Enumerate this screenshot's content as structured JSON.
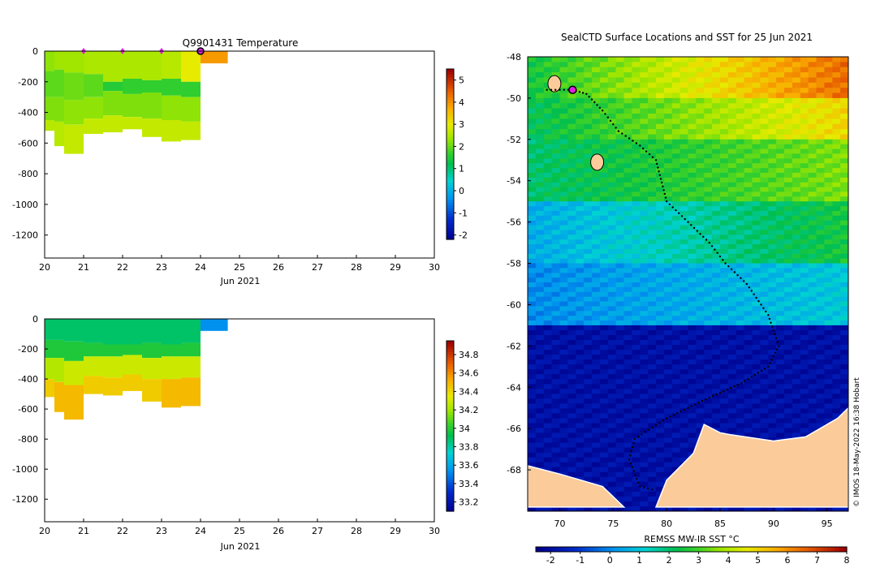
{
  "charts": {
    "temperature": {
      "title": "Q9901431  Temperature",
      "xlabel": "Jun 2021",
      "x_ticks": [
        "20",
        "21",
        "22",
        "23",
        "24",
        "25",
        "26",
        "27",
        "28",
        "29",
        "30"
      ],
      "y_ticks": [
        "0",
        "-200",
        "-400",
        "-600",
        "-800",
        "-1000",
        "-1200"
      ],
      "colorbar_ticks": [
        "5",
        "4",
        "3",
        "2",
        "1",
        "0",
        "-1",
        "-2"
      ]
    },
    "salinity": {
      "xlabel": "Jun 2021",
      "x_ticks": [
        "20",
        "21",
        "22",
        "23",
        "24",
        "25",
        "26",
        "27",
        "28",
        "29",
        "30"
      ],
      "y_ticks": [
        "0",
        "-200",
        "-400",
        "-600",
        "-800",
        "-1000",
        "-1200"
      ],
      "colorbar_ticks": [
        "34.8",
        "34.6",
        "34.4",
        "34.2",
        "34",
        "33.8",
        "33.6",
        "33.4",
        "33.2"
      ]
    },
    "map": {
      "title": "SealCTD Surface Locations and SST for 25 Jun 2021",
      "x_ticks": [
        "70",
        "75",
        "80",
        "85",
        "90",
        "95"
      ],
      "y_ticks": [
        "-48",
        "-50",
        "-52",
        "-54",
        "-56",
        "-58",
        "-60",
        "-62",
        "-64",
        "-66",
        "-68"
      ],
      "colorbar_label": "REMSS MW-IR SST °C",
      "colorbar_ticks": [
        "-2",
        "-1",
        "0",
        "1",
        "2",
        "3",
        "4",
        "5",
        "6",
        "7",
        "8"
      ],
      "credit": "© IMOS 18-May-2022 16:38 Hobart"
    }
  },
  "chart_data": [
    {
      "type": "heatmap",
      "title": "Q9901431  Temperature",
      "xlabel": "Jun 2021",
      "ylabel": "",
      "xlim": [
        20,
        30
      ],
      "ylim": [
        -1350,
        0
      ],
      "color_range": [
        -2,
        5.5
      ],
      "profiles": [
        {
          "day": 20.0,
          "max_depth": 520,
          "layers": [
            [
              0,
              130,
              2.4
            ],
            [
              130,
              300,
              2.1
            ],
            [
              300,
              450,
              2.3
            ],
            [
              450,
              520,
              2.7
            ]
          ]
        },
        {
          "day": 20.25,
          "max_depth": 620,
          "layers": [
            [
              0,
              120,
              2.5
            ],
            [
              120,
              300,
              2.1
            ],
            [
              300,
              460,
              2.3
            ],
            [
              460,
              620,
              2.7
            ]
          ]
        },
        {
          "day": 20.5,
          "max_depth": 670,
          "layers": [
            [
              0,
              140,
              2.5
            ],
            [
              140,
              320,
              2.2
            ],
            [
              320,
              480,
              2.4
            ],
            [
              480,
              670,
              2.8
            ]
          ]
        },
        {
          "day": 21.0,
          "max_depth": 540,
          "layers": [
            [
              0,
              150,
              2.6
            ],
            [
              150,
              300,
              2.1
            ],
            [
              300,
              440,
              2.4
            ],
            [
              440,
              540,
              2.8
            ]
          ]
        },
        {
          "day": 21.5,
          "max_depth": 530,
          "layers": [
            [
              0,
              200,
              2.6
            ],
            [
              200,
              260,
              1.7
            ],
            [
              260,
              420,
              2.3
            ],
            [
              420,
              530,
              2.8
            ]
          ]
        },
        {
          "day": 22.0,
          "max_depth": 510,
          "layers": [
            [
              0,
              180,
              2.6
            ],
            [
              180,
              280,
              1.8
            ],
            [
              280,
              430,
              2.3
            ],
            [
              430,
              510,
              2.8
            ]
          ]
        },
        {
          "day": 22.5,
          "max_depth": 560,
          "layers": [
            [
              0,
              190,
              2.6
            ],
            [
              190,
              270,
              1.8
            ],
            [
              270,
              440,
              2.3
            ],
            [
              440,
              560,
              2.8
            ]
          ]
        },
        {
          "day": 23.0,
          "max_depth": 590,
          "layers": [
            [
              0,
              180,
              2.7
            ],
            [
              180,
              290,
              1.8
            ],
            [
              290,
              450,
              2.4
            ],
            [
              450,
              590,
              2.8
            ]
          ]
        },
        {
          "day": 23.5,
          "max_depth": 580,
          "layers": [
            [
              0,
              200,
              3.1
            ],
            [
              200,
              300,
              1.8
            ],
            [
              300,
              460,
              2.4
            ],
            [
              460,
              580,
              2.8
            ]
          ]
        },
        {
          "day": 24.0,
          "max_depth": 80,
          "layers": [
            [
              0,
              80,
              4.0
            ]
          ]
        }
      ],
      "surface_markers_days": [
        21,
        22,
        23
      ],
      "current_day": 24
    },
    {
      "type": "heatmap",
      "title": "",
      "xlabel": "Jun 2021",
      "ylabel": "",
      "xlim": [
        20,
        30
      ],
      "ylim": [
        -1350,
        0
      ],
      "color_range": [
        33.1,
        34.95
      ],
      "profiles": [
        {
          "day": 20.0,
          "max_depth": 520,
          "layers": [
            [
              0,
              140,
              33.9
            ],
            [
              140,
              260,
              34.0
            ],
            [
              260,
              400,
              34.25
            ],
            [
              400,
              520,
              34.45
            ]
          ]
        },
        {
          "day": 20.25,
          "max_depth": 620,
          "layers": [
            [
              0,
              140,
              33.9
            ],
            [
              140,
              260,
              34.0
            ],
            [
              260,
              420,
              34.25
            ],
            [
              420,
              620,
              34.5
            ]
          ]
        },
        {
          "day": 20.5,
          "max_depth": 670,
          "layers": [
            [
              0,
              150,
              33.9
            ],
            [
              150,
              280,
              34.0
            ],
            [
              280,
              440,
              34.3
            ],
            [
              440,
              670,
              34.5
            ]
          ]
        },
        {
          "day": 21.0,
          "max_depth": 500,
          "layers": [
            [
              0,
              160,
              33.9
            ],
            [
              160,
              250,
              34.0
            ],
            [
              250,
              380,
              34.3
            ],
            [
              380,
              500,
              34.45
            ]
          ]
        },
        {
          "day": 21.5,
          "max_depth": 510,
          "layers": [
            [
              0,
              170,
              33.9
            ],
            [
              170,
              250,
              34.0
            ],
            [
              250,
              390,
              34.3
            ],
            [
              390,
              510,
              34.45
            ]
          ]
        },
        {
          "day": 22.0,
          "max_depth": 480,
          "layers": [
            [
              0,
              170,
              33.9
            ],
            [
              170,
              240,
              34.0
            ],
            [
              240,
              370,
              34.3
            ],
            [
              370,
              480,
              34.45
            ]
          ]
        },
        {
          "day": 22.5,
          "max_depth": 550,
          "layers": [
            [
              0,
              160,
              33.9
            ],
            [
              160,
              260,
              34.0
            ],
            [
              260,
              400,
              34.3
            ],
            [
              400,
              550,
              34.45
            ]
          ]
        },
        {
          "day": 23.0,
          "max_depth": 590,
          "layers": [
            [
              0,
              170,
              33.9
            ],
            [
              170,
              250,
              34.0
            ],
            [
              250,
              400,
              34.3
            ],
            [
              400,
              590,
              34.5
            ]
          ]
        },
        {
          "day": 23.5,
          "max_depth": 580,
          "layers": [
            [
              0,
              160,
              33.9
            ],
            [
              160,
              250,
              34.0
            ],
            [
              250,
              390,
              34.3
            ],
            [
              390,
              580,
              34.5
            ]
          ]
        },
        {
          "day": 24.0,
          "max_depth": 80,
          "layers": [
            [
              0,
              80,
              33.55
            ]
          ]
        }
      ]
    },
    {
      "type": "heatmap",
      "title": "SealCTD Surface Locations and SST for 25 Jun 2021",
      "xlabel": "",
      "ylabel": "",
      "xlim": [
        67,
        97
      ],
      "ylim": [
        -70,
        -48
      ],
      "colorbar_label": "REMSS MW-IR SST °C",
      "color_range": [
        -2.5,
        8
      ],
      "sst_zones": [
        {
          "lat_from": -48,
          "lat_to": -50,
          "sst_west": 2.5,
          "sst_east": 6.5
        },
        {
          "lat_from": -50,
          "lat_to": -52,
          "sst_west": 2.2,
          "sst_east": 5.0
        },
        {
          "lat_from": -52,
          "lat_to": -55,
          "sst_west": 2.0,
          "sst_east": 3.5
        },
        {
          "lat_from": -55,
          "lat_to": -58,
          "sst_west": 0.5,
          "sst_east": 2.5
        },
        {
          "lat_from": -58,
          "lat_to": -61,
          "sst_west": 0.0,
          "sst_east": 1.0
        },
        {
          "lat_from": -61,
          "lat_to": -70,
          "sst_west": -2.0,
          "sst_east": -2.0
        }
      ],
      "track": [
        [
          68.8,
          -49.6
        ],
        [
          71.2,
          -49.6
        ],
        [
          72.5,
          -49.8
        ],
        [
          74.0,
          -50.6
        ],
        [
          75.5,
          -51.6
        ],
        [
          77.5,
          -52.3
        ],
        [
          79.0,
          -53.0
        ],
        [
          80.0,
          -55.0
        ],
        [
          82.0,
          -56.0
        ],
        [
          84.0,
          -57.0
        ],
        [
          85.5,
          -58.0
        ],
        [
          87.5,
          -59.0
        ],
        [
          89.5,
          -60.5
        ],
        [
          90.5,
          -62.0
        ],
        [
          89.5,
          -63.0
        ],
        [
          87.0,
          -63.8
        ],
        [
          84.0,
          -64.5
        ],
        [
          80.0,
          -65.5
        ],
        [
          77.0,
          -66.5
        ],
        [
          76.5,
          -67.5
        ],
        [
          77.5,
          -68.8
        ],
        [
          79.0,
          -69.0
        ]
      ],
      "current_position": [
        71.2,
        -49.6
      ],
      "land_polygons": [
        [
          [
            67,
            -67.8
          ],
          [
            70,
            -68.2
          ],
          [
            72,
            -68.5
          ],
          [
            74,
            -68.8
          ],
          [
            76,
            -69.8
          ],
          [
            67,
            -69.8
          ]
        ],
        [
          [
            86,
            -66.3
          ],
          [
            90,
            -66.6
          ],
          [
            93,
            -66.4
          ],
          [
            96,
            -65.5
          ],
          [
            97,
            -65.0
          ],
          [
            97,
            -69.8
          ],
          [
            79,
            -69.8
          ],
          [
            80,
            -68.5
          ],
          [
            82.5,
            -67.2
          ],
          [
            83.5,
            -65.8
          ],
          [
            85,
            -66.2
          ]
        ]
      ],
      "islands": [
        [
          69.5,
          -49.3
        ],
        [
          73.5,
          -53.1
        ]
      ]
    }
  ]
}
